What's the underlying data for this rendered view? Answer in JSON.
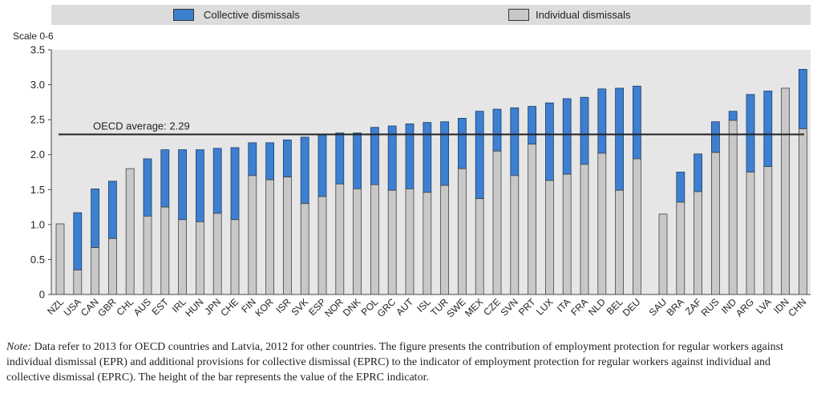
{
  "legend": {
    "collective_label": "Collective dismissals",
    "individual_label": "Individual dismissals"
  },
  "scale_label": "Scale 0-6",
  "avg_label": "OECD average: 2.29",
  "note": {
    "prefix": "Note:",
    "text": "Data refer to 2013 for OECD countries and Latvia, 2012 for other countries. The figure presents the contribution of employment protection for regular workers against individual dismissal (EPR) and additional provisions for collective dismissal (EPRC) to the indicator of employment protection for regular workers against individual and collective dismissal (EPRC). The height of the bar represents the value of the EPRC indicator."
  },
  "colors": {
    "collective": "#3d7fd1",
    "individual": "#c8c8c8",
    "plot_bg": "#e6e6e6",
    "avg_line": "#222222"
  },
  "chart_data": {
    "type": "bar",
    "stacked": true,
    "ylabel": "Scale 0-6",
    "ylim": [
      0,
      3.5
    ],
    "yticks": [
      "0",
      "0.5",
      "1.0",
      "1.5",
      "2.0",
      "2.5",
      "3.0",
      "3.5"
    ],
    "grid": false,
    "legend_position": "top",
    "reference_line": {
      "label": "OECD average: 2.29",
      "value": 2.29
    },
    "groups": [
      {
        "categories": [
          "NZL",
          "USA",
          "CAN",
          "GBR",
          "CHL",
          "AUS",
          "EST",
          "IRL",
          "HUN",
          "JPN",
          "CHE",
          "FIN",
          "KOR",
          "ISR",
          "SVK",
          "ESP",
          "NOR",
          "DNK",
          "POL",
          "GRC",
          "AUT",
          "ISL",
          "TUR",
          "SWE",
          "MEX",
          "CZE",
          "SVN",
          "PRT",
          "LUX",
          "ITA",
          "FRA",
          "NLD",
          "BEL",
          "DEU"
        ],
        "individual": [
          1.01,
          0.35,
          0.67,
          0.8,
          1.8,
          1.12,
          1.25,
          1.07,
          1.04,
          1.16,
          1.07,
          1.7,
          1.64,
          1.68,
          1.3,
          1.4,
          1.58,
          1.51,
          1.57,
          1.49,
          1.51,
          1.46,
          1.56,
          1.8,
          1.37,
          2.05,
          1.7,
          2.15,
          1.63,
          1.72,
          1.86,
          2.02,
          1.49,
          1.94
        ],
        "total": [
          1.01,
          1.17,
          1.51,
          1.62,
          1.8,
          1.94,
          2.07,
          2.07,
          2.07,
          2.09,
          2.1,
          2.17,
          2.17,
          2.21,
          2.25,
          2.29,
          2.31,
          2.31,
          2.39,
          2.41,
          2.44,
          2.46,
          2.47,
          2.52,
          2.62,
          2.65,
          2.67,
          2.69,
          2.74,
          2.8,
          2.82,
          2.94,
          2.95,
          2.98
        ]
      },
      {
        "categories": [
          "SAU",
          "BRA",
          "ZAF",
          "RUS",
          "IND",
          "ARG",
          "LVA",
          "IDN",
          "CHN"
        ],
        "individual": [
          1.15,
          1.32,
          1.47,
          2.03,
          2.49,
          1.75,
          1.83,
          2.95,
          2.37
        ],
        "total": [
          1.15,
          1.75,
          2.01,
          2.47,
          2.62,
          2.86,
          2.91,
          2.95,
          3.22
        ]
      }
    ],
    "series": [
      {
        "name": "Individual dismissals",
        "key": "individual"
      },
      {
        "name": "Collective dismissals",
        "key": "total_minus_individual"
      }
    ]
  }
}
